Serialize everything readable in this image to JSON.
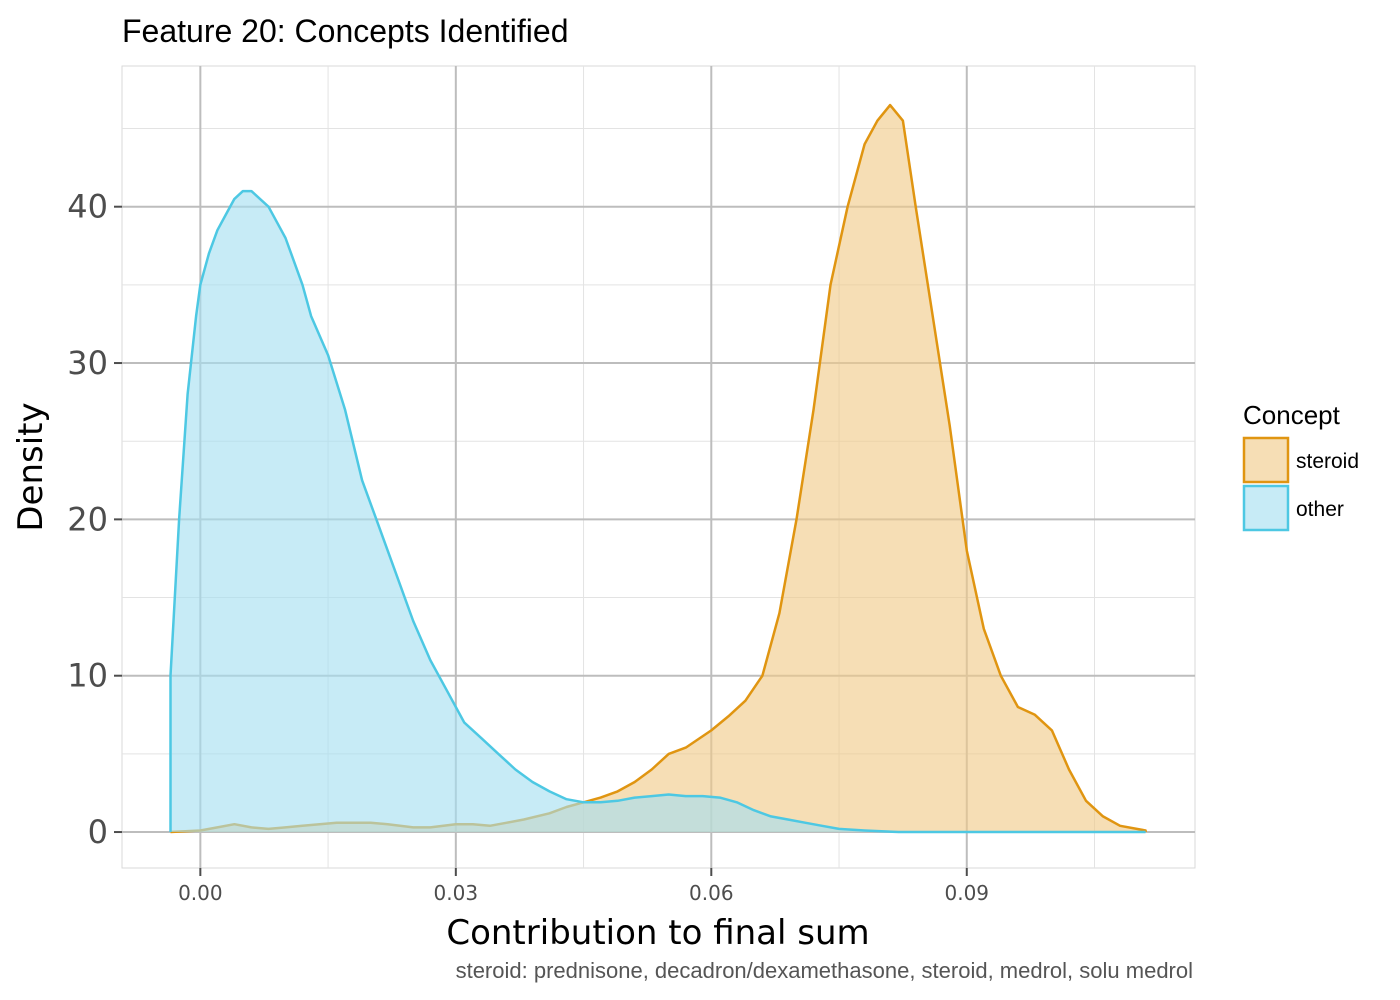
{
  "chart_data": {
    "type": "area",
    "title": "Feature 20: Concepts Identified",
    "xlabel": "Contribution to final sum",
    "ylabel": "Density",
    "caption": "steroid: prednisone, decadron/dexamethasone, steroid, medrol, solu medrol",
    "xlim": [
      -0.0092,
      0.1168
    ],
    "ylim": [
      -2.3,
      49.0
    ],
    "x_ticks": [
      0.0,
      0.03,
      0.06,
      0.09
    ],
    "x_tick_labels": [
      "0.00",
      "0.03",
      "0.06",
      "0.09"
    ],
    "y_ticks": [
      0,
      10,
      20,
      30,
      40
    ],
    "y_tick_labels": [
      "0",
      "10",
      "20",
      "30",
      "40"
    ],
    "grid": true,
    "legend": {
      "title": "Concept",
      "position": "right"
    },
    "series": [
      {
        "name": "steroid",
        "line_color": "#E09511",
        "fill_color": "#F0C987",
        "points": [
          [
            -0.0035,
            0.0
          ],
          [
            0.0,
            0.1
          ],
          [
            0.002,
            0.3
          ],
          [
            0.004,
            0.5
          ],
          [
            0.006,
            0.3
          ],
          [
            0.008,
            0.2
          ],
          [
            0.01,
            0.3
          ],
          [
            0.012,
            0.4
          ],
          [
            0.014,
            0.5
          ],
          [
            0.016,
            0.6
          ],
          [
            0.018,
            0.6
          ],
          [
            0.02,
            0.6
          ],
          [
            0.022,
            0.5
          ],
          [
            0.025,
            0.3
          ],
          [
            0.027,
            0.3
          ],
          [
            0.03,
            0.5
          ],
          [
            0.032,
            0.5
          ],
          [
            0.034,
            0.4
          ],
          [
            0.036,
            0.6
          ],
          [
            0.038,
            0.8
          ],
          [
            0.041,
            1.2
          ],
          [
            0.043,
            1.6
          ],
          [
            0.045,
            1.9
          ],
          [
            0.047,
            2.2
          ],
          [
            0.049,
            2.6
          ],
          [
            0.051,
            3.2
          ],
          [
            0.053,
            4.0
          ],
          [
            0.055,
            5.0
          ],
          [
            0.057,
            5.4
          ],
          [
            0.06,
            6.5
          ],
          [
            0.062,
            7.4
          ],
          [
            0.064,
            8.4
          ],
          [
            0.066,
            10.0
          ],
          [
            0.068,
            14.0
          ],
          [
            0.07,
            20.0
          ],
          [
            0.072,
            27.0
          ],
          [
            0.074,
            35.0
          ],
          [
            0.076,
            40.0
          ],
          [
            0.078,
            44.0
          ],
          [
            0.0795,
            45.5
          ],
          [
            0.081,
            46.5
          ],
          [
            0.0825,
            45.5
          ],
          [
            0.084,
            40.0
          ],
          [
            0.086,
            33.0
          ],
          [
            0.088,
            26.0
          ],
          [
            0.09,
            18.0
          ],
          [
            0.092,
            13.0
          ],
          [
            0.094,
            10.0
          ],
          [
            0.096,
            8.0
          ],
          [
            0.098,
            7.5
          ],
          [
            0.1,
            6.5
          ],
          [
            0.102,
            4.0
          ],
          [
            0.104,
            2.0
          ],
          [
            0.106,
            1.0
          ],
          [
            0.108,
            0.4
          ],
          [
            0.111,
            0.1
          ]
        ]
      },
      {
        "name": "other",
        "line_color": "#4DC8E3",
        "fill_color": "#A5DEF0",
        "points": [
          [
            -0.0035,
            10.0
          ],
          [
            -0.0025,
            20.0
          ],
          [
            -0.0015,
            28.0
          ],
          [
            -0.0005,
            33.0
          ],
          [
            0.0,
            35.0
          ],
          [
            0.001,
            37.0
          ],
          [
            0.002,
            38.5
          ],
          [
            0.003,
            39.5
          ],
          [
            0.004,
            40.5
          ],
          [
            0.005,
            41.0
          ],
          [
            0.006,
            41.0
          ],
          [
            0.007,
            40.5
          ],
          [
            0.008,
            40.0
          ],
          [
            0.009,
            39.0
          ],
          [
            0.01,
            38.0
          ],
          [
            0.011,
            36.5
          ],
          [
            0.012,
            35.0
          ],
          [
            0.013,
            33.0
          ],
          [
            0.015,
            30.5
          ],
          [
            0.017,
            27.0
          ],
          [
            0.019,
            22.5
          ],
          [
            0.021,
            19.5
          ],
          [
            0.023,
            16.5
          ],
          [
            0.025,
            13.5
          ],
          [
            0.027,
            11.0
          ],
          [
            0.029,
            9.0
          ],
          [
            0.031,
            7.0
          ],
          [
            0.033,
            6.0
          ],
          [
            0.035,
            5.0
          ],
          [
            0.037,
            4.0
          ],
          [
            0.039,
            3.2
          ],
          [
            0.041,
            2.6
          ],
          [
            0.043,
            2.1
          ],
          [
            0.045,
            1.9
          ],
          [
            0.047,
            1.9
          ],
          [
            0.049,
            2.0
          ],
          [
            0.051,
            2.2
          ],
          [
            0.053,
            2.3
          ],
          [
            0.055,
            2.4
          ],
          [
            0.057,
            2.3
          ],
          [
            0.059,
            2.3
          ],
          [
            0.061,
            2.2
          ],
          [
            0.063,
            1.9
          ],
          [
            0.065,
            1.4
          ],
          [
            0.067,
            1.0
          ],
          [
            0.069,
            0.8
          ],
          [
            0.071,
            0.6
          ],
          [
            0.073,
            0.4
          ],
          [
            0.075,
            0.2
          ],
          [
            0.078,
            0.1
          ],
          [
            0.082,
            0.0
          ],
          [
            0.09,
            0.0
          ],
          [
            0.111,
            0.0
          ]
        ]
      }
    ]
  }
}
